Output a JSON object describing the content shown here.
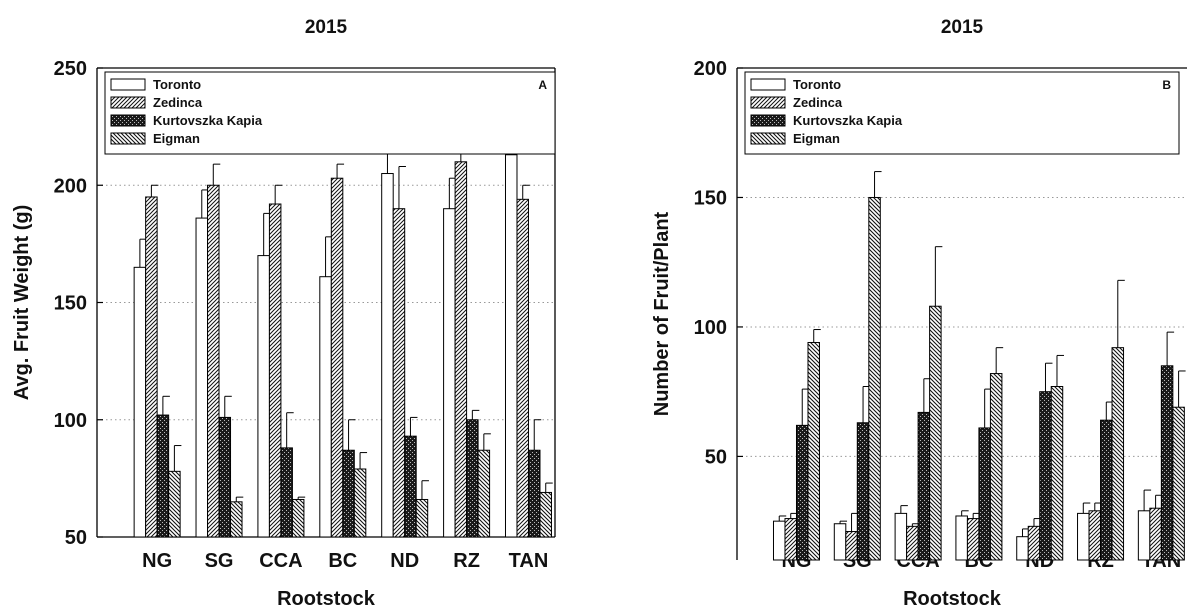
{
  "chart_data": [
    {
      "type": "bar",
      "panel": "A",
      "title": "2015",
      "xlabel": "Rootstock",
      "ylabel": "Avg. Fruit Weight (g)",
      "ylim": [
        50,
        250
      ],
      "yticks": [
        50,
        100,
        150,
        200,
        250
      ],
      "grid": "horizontal dotted",
      "legend_position": "top-left",
      "categories": [
        "NG",
        "SG",
        "CCA",
        "BC",
        "ND",
        "RZ",
        "TAN"
      ],
      "series": [
        {
          "name": "Toronto",
          "values": [
            165,
            186,
            170,
            161,
            205,
            190,
            213
          ],
          "errors": [
            12,
            12,
            18,
            17,
            13,
            13,
            8
          ]
        },
        {
          "name": "Zedinca",
          "values": [
            195,
            200,
            192,
            203,
            190,
            210,
            194
          ],
          "errors": [
            5,
            9,
            8,
            6,
            18,
            15,
            6
          ]
        },
        {
          "name": "Kurtovszka Kapia",
          "values": [
            102,
            101,
            88,
            87,
            93,
            100,
            87
          ],
          "errors": [
            8,
            9,
            15,
            13,
            8,
            4,
            13
          ]
        },
        {
          "name": "Eigman",
          "values": [
            78,
            65,
            66,
            79,
            66,
            87,
            69
          ],
          "errors": [
            11,
            2,
            1,
            7,
            8,
            7,
            4
          ]
        }
      ]
    },
    {
      "type": "bar",
      "panel": "B",
      "title": "2015",
      "xlabel": "Rootstock",
      "ylabel": "Number of Fruit/Plant",
      "ylim": [
        10,
        200
      ],
      "yticks": [
        50,
        100,
        150,
        200
      ],
      "grid": "horizontal dotted",
      "legend_position": "top-left",
      "categories": [
        "NG",
        "SG",
        "CCA",
        "BC",
        "ND",
        "RZ",
        "TAN"
      ],
      "series": [
        {
          "name": "Toronto",
          "values": [
            25,
            24,
            28,
            27,
            19,
            28,
            29
          ],
          "errors": [
            2,
            1,
            3,
            2,
            3,
            4,
            8
          ]
        },
        {
          "name": "Zedinca",
          "values": [
            26,
            21,
            23,
            26,
            23,
            29,
            30
          ],
          "errors": [
            2,
            7,
            1,
            2,
            3,
            3,
            5
          ]
        },
        {
          "name": "Kurtovszka Kapia",
          "values": [
            62,
            63,
            67,
            61,
            75,
            64,
            85
          ],
          "errors": [
            14,
            14,
            13,
            15,
            11,
            7,
            13
          ]
        },
        {
          "name": "Eigman",
          "values": [
            94,
            150,
            108,
            82,
            77,
            92,
            69
          ],
          "errors": [
            5,
            10,
            23,
            10,
            12,
            26,
            14
          ]
        }
      ]
    }
  ]
}
